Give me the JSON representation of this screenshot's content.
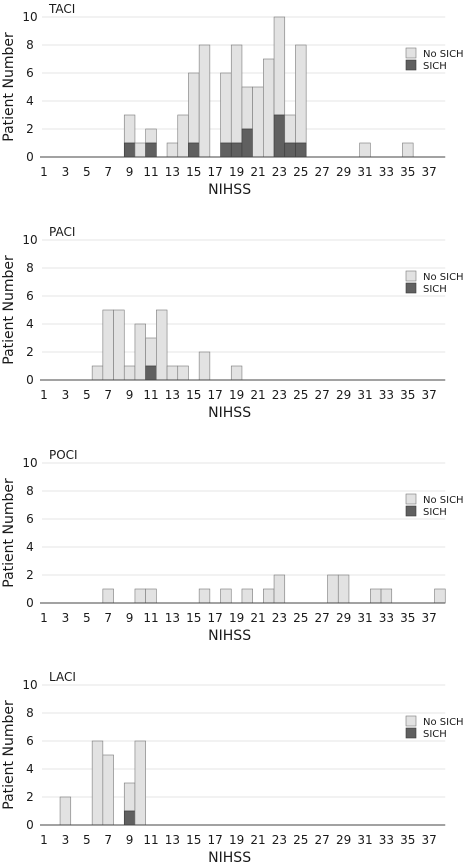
{
  "colors": {
    "no_sich": "#e2e2e2",
    "sich": "#606060",
    "bar_edge": "#7a7a7a",
    "grid": "#e4e4e4",
    "axis": "#444444"
  },
  "chart_data": [
    {
      "type": "bar",
      "stacked": true,
      "title": "TACI",
      "xlabel": "NIHSS",
      "ylabel": "Patient Number",
      "ylim": [
        0,
        10
      ],
      "yticks": [
        0,
        2,
        4,
        6,
        8,
        10
      ],
      "xlim": [
        1,
        38
      ],
      "xticks": [
        1,
        3,
        5,
        7,
        9,
        11,
        13,
        15,
        17,
        19,
        21,
        23,
        25,
        27,
        29,
        31,
        33,
        35,
        37
      ],
      "grid": true,
      "legend": "right",
      "x": [
        9,
        10,
        11,
        13,
        14,
        15,
        16,
        18,
        19,
        20,
        21,
        22,
        23,
        24,
        25,
        31,
        35
      ],
      "series": [
        {
          "name": "No SICH",
          "values": [
            2,
            1,
            1,
            1,
            3,
            5,
            8,
            5,
            7,
            3,
            5,
            7,
            7,
            2,
            7,
            1,
            1
          ]
        },
        {
          "name": "SICH",
          "values": [
            1,
            0,
            1,
            0,
            0,
            1,
            0,
            1,
            1,
            2,
            0,
            0,
            3,
            1,
            1,
            0,
            0
          ]
        }
      ]
    },
    {
      "type": "bar",
      "stacked": true,
      "title": "PACI",
      "xlabel": "NIHSS",
      "ylabel": "Patient Number",
      "ylim": [
        0,
        10
      ],
      "yticks": [
        0,
        2,
        4,
        6,
        8,
        10
      ],
      "xlim": [
        1,
        38
      ],
      "xticks": [
        1,
        3,
        5,
        7,
        9,
        11,
        13,
        15,
        17,
        19,
        21,
        23,
        25,
        27,
        29,
        31,
        33,
        35,
        37
      ],
      "grid": true,
      "legend": "right",
      "x": [
        6,
        7,
        8,
        9,
        10,
        11,
        12,
        13,
        14,
        16,
        19
      ],
      "series": [
        {
          "name": "No SICH",
          "values": [
            1,
            5,
            5,
            1,
            4,
            2,
            5,
            1,
            1,
            2,
            1
          ]
        },
        {
          "name": "SICH",
          "values": [
            0,
            0,
            0,
            0,
            0,
            1,
            0,
            0,
            0,
            0,
            0
          ]
        }
      ]
    },
    {
      "type": "bar",
      "stacked": true,
      "title": "POCI",
      "xlabel": "NIHSS",
      "ylabel": "Patient Number",
      "ylim": [
        0,
        10
      ],
      "yticks": [
        0,
        2,
        4,
        6,
        8,
        10
      ],
      "xlim": [
        1,
        38
      ],
      "xticks": [
        1,
        3,
        5,
        7,
        9,
        11,
        13,
        15,
        17,
        19,
        21,
        23,
        25,
        27,
        29,
        31,
        33,
        35,
        37
      ],
      "grid": true,
      "legend": "right",
      "x": [
        7,
        10,
        11,
        16,
        18,
        20,
        22,
        23,
        28,
        29,
        32,
        33,
        38
      ],
      "series": [
        {
          "name": "No SICH",
          "values": [
            1,
            1,
            1,
            1,
            1,
            1,
            1,
            2,
            2,
            2,
            1,
            1,
            1
          ]
        },
        {
          "name": "SICH",
          "values": [
            0,
            0,
            0,
            0,
            0,
            0,
            0,
            0,
            0,
            0,
            0,
            0,
            0
          ]
        }
      ]
    },
    {
      "type": "bar",
      "stacked": true,
      "title": "LACI",
      "xlabel": "NIHSS",
      "ylabel": "Patient Number",
      "ylim": [
        0,
        10
      ],
      "yticks": [
        0,
        2,
        4,
        6,
        8,
        10
      ],
      "xlim": [
        1,
        38
      ],
      "xticks": [
        1,
        3,
        5,
        7,
        9,
        11,
        13,
        15,
        17,
        19,
        21,
        23,
        25,
        27,
        29,
        31,
        33,
        35,
        37
      ],
      "grid": true,
      "legend": "right",
      "x": [
        3,
        6,
        7,
        9,
        10
      ],
      "series": [
        {
          "name": "No SICH",
          "values": [
            2,
            6,
            5,
            2,
            6
          ]
        },
        {
          "name": "SICH",
          "values": [
            0,
            0,
            0,
            1,
            0
          ]
        }
      ]
    }
  ]
}
